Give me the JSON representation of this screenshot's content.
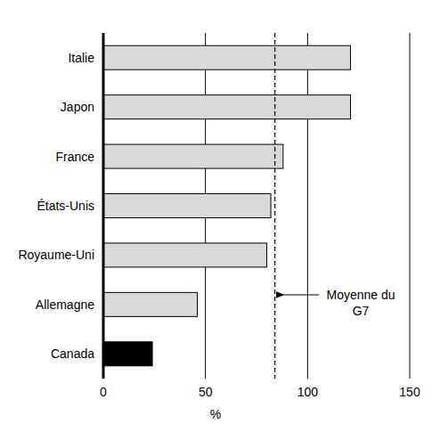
{
  "chart_data": {
    "type": "bar",
    "orientation": "horizontal",
    "categories": [
      "Italie",
      "Japon",
      "France",
      "États-Unis",
      "Royaume-Uni",
      "Allemagne",
      "Canada"
    ],
    "values": [
      121,
      121,
      88,
      82,
      80,
      46,
      24
    ],
    "colors": [
      "#d9d9d9",
      "#d9d9d9",
      "#d9d9d9",
      "#d9d9d9",
      "#d9d9d9",
      "#d9d9d9",
      "#000000"
    ],
    "xlabel": "%",
    "xlim": [
      0,
      150
    ],
    "xticks": [
      0,
      50,
      100,
      150
    ],
    "grid": true,
    "average": {
      "label": "Moyenne du G7",
      "value": 84
    }
  }
}
